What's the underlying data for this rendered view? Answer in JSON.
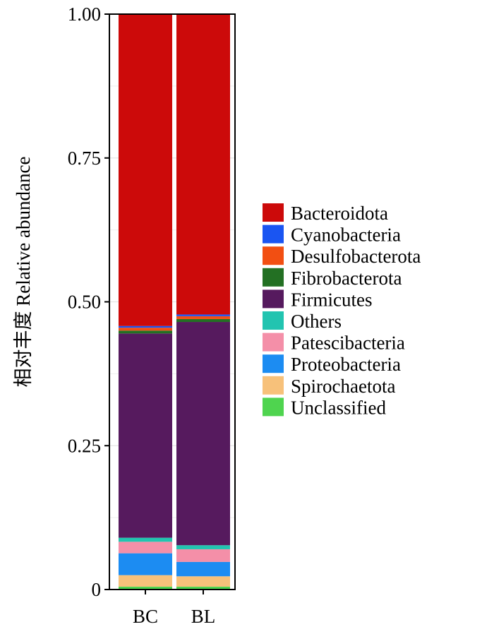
{
  "chart_data": {
    "type": "bar",
    "stacked": true,
    "title": "",
    "xlabel": "",
    "ylabel": "相对丰度 Relative abundance",
    "ylim": [
      0,
      1
    ],
    "yticks": [
      {
        "value": 0,
        "label": "0"
      },
      {
        "value": 0.25,
        "label": "0.25"
      },
      {
        "value": 0.5,
        "label": "0.50"
      },
      {
        "value": 0.75,
        "label": "0.75"
      },
      {
        "value": 1,
        "label": "1.00"
      }
    ],
    "grid": true,
    "legend_position": "right",
    "categories": [
      "BC",
      "BL"
    ],
    "series": [
      {
        "name": "Unclassified",
        "color": "#4fd44f",
        "values": [
          0.005,
          0.005
        ]
      },
      {
        "name": "Spirochaetota",
        "color": "#f7c17a",
        "values": [
          0.02,
          0.018
        ]
      },
      {
        "name": "Proteobacteria",
        "color": "#1c8cf2",
        "values": [
          0.038,
          0.025
        ]
      },
      {
        "name": "Patescibacteria",
        "color": "#f48fa8",
        "values": [
          0.02,
          0.022
        ]
      },
      {
        "name": "Others",
        "color": "#22c4b0",
        "values": [
          0.007,
          0.007
        ]
      },
      {
        "name": "Firmicutes",
        "color": "#561a5e",
        "values": [
          0.355,
          0.388
        ]
      },
      {
        "name": "Fibrobacterota",
        "color": "#237023",
        "values": [
          0.005,
          0.005
        ]
      },
      {
        "name": "Desulfobacterota",
        "color": "#f24f12",
        "values": [
          0.005,
          0.005
        ]
      },
      {
        "name": "Cyanobacteria",
        "color": "#1a55f2",
        "values": [
          0.003,
          0.003
        ]
      },
      {
        "name": "Bacteroidota",
        "color": "#cc0a0a",
        "values": [
          0.542,
          0.522
        ]
      }
    ],
    "legend_order": [
      "Bacteroidota",
      "Cyanobacteria",
      "Desulfobacterota",
      "Fibrobacterota",
      "Firmicutes",
      "Others",
      "Patescibacteria",
      "Proteobacteria",
      "Spirochaetota",
      "Unclassified"
    ]
  }
}
